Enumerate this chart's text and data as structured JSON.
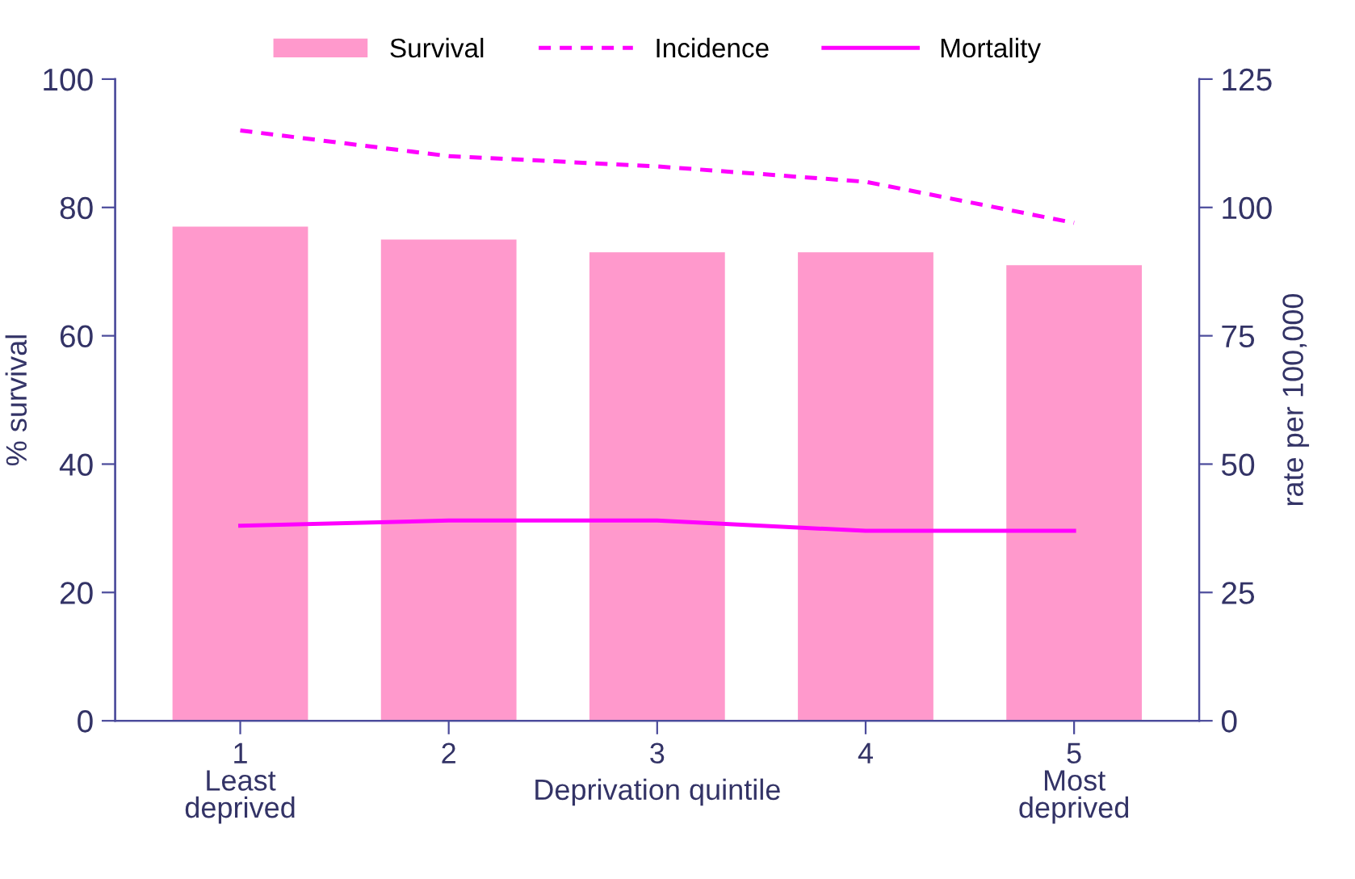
{
  "chart_data": {
    "type": "bar",
    "categories": [
      "1\nLeast\ndeprived",
      "2",
      "3",
      "4",
      "5\nMost\ndeprived"
    ],
    "xlabel": "Deprivation quintile",
    "ylabel": "% survival",
    "y2label": "rate per 100,000",
    "series": [
      {
        "name": "Survival",
        "color": "#ff99cc",
        "values": [
          77,
          75,
          73,
          73,
          71
        ]
      },
      {
        "name": "Incidence",
        "type": "line",
        "axis": "y2",
        "color": "#ff00ff",
        "line_style": "dashed",
        "values": [
          115,
          110,
          108,
          105,
          97
        ]
      },
      {
        "name": "Mortality",
        "type": "line",
        "axis": "y2",
        "color": "#ff00ff",
        "line_style": "solid",
        "values": [
          38,
          39,
          39,
          37,
          37
        ]
      }
    ],
    "ylim": [
      0,
      100
    ],
    "yticks": [
      0,
      20,
      40,
      60,
      80,
      100
    ],
    "y2lim": [
      0,
      125
    ],
    "y2ticks": [
      0,
      25,
      50,
      75,
      100,
      125
    ],
    "grid": false,
    "legend": "top",
    "marker": "none"
  }
}
